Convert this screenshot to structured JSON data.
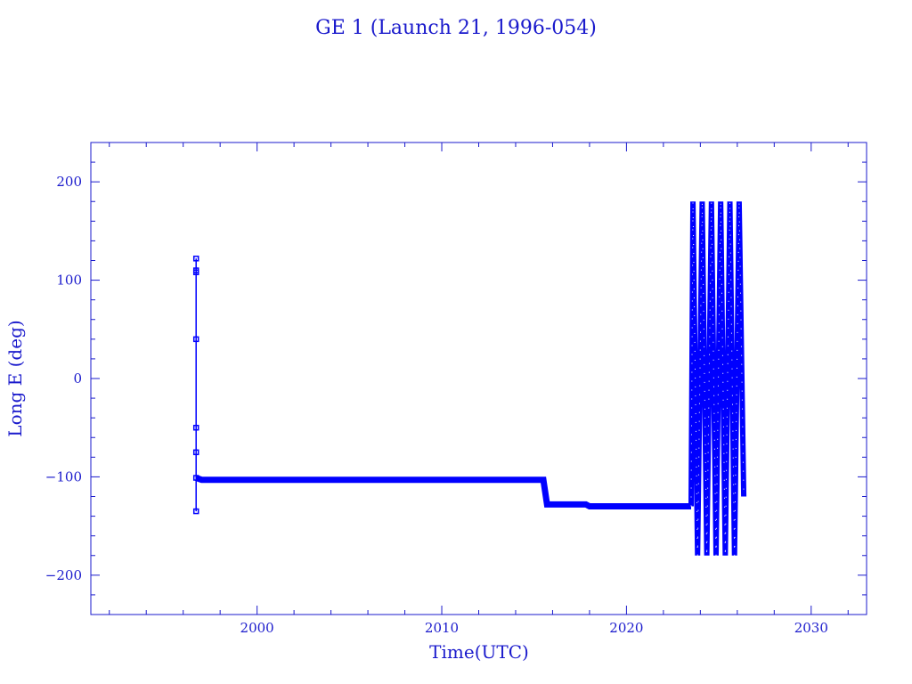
{
  "colors": {
    "axis": "#1a1acc",
    "series": "#0000ff",
    "background": "#ffffff"
  },
  "chart_data": {
    "type": "line",
    "title": "GE 1 (Launch 21, 1996-054)",
    "xlabel": "Time(UTC)",
    "ylabel": "Long E (deg)",
    "xlim": [
      1991,
      2033
    ],
    "ylim": [
      -240,
      240
    ],
    "x_ticks": [
      2000,
      2010,
      2020,
      2030
    ],
    "x_tick_labels": [
      "2000",
      "2010",
      "2020",
      "2030"
    ],
    "y_ticks": [
      -200,
      -100,
      0,
      100,
      200
    ],
    "y_tick_labels": [
      "−200",
      "−100",
      "0",
      "100",
      "200"
    ],
    "x_minor_step": 2,
    "y_minor_step": 20,
    "grid": false,
    "series": [
      {
        "x": [
          1996.7,
          1996.7,
          1996.7,
          1996.7,
          1996.7,
          1996.7,
          1996.7,
          1996.7,
          1997.0,
          2005.0,
          2010.0,
          2015.5,
          2015.7,
          2016.5,
          2017.8,
          2018.0,
          2019.0,
          2021.0,
          2023.4,
          2023.5
        ],
        "y": [
          -135,
          -101,
          -75,
          -50,
          40,
          108,
          110,
          122,
          -103,
          -103,
          -103,
          -103,
          -128,
          -128,
          -128,
          -130,
          -130,
          -130,
          -130,
          -130
        ]
      },
      {
        "x": [
          2023.5,
          2023.6,
          2023.85,
          2024.1,
          2024.35,
          2024.6,
          2024.85,
          2025.1,
          2025.35,
          2025.6,
          2025.85,
          2026.1,
          2026.35
        ],
        "y": [
          -130,
          180,
          -180,
          180,
          -180,
          180,
          -180,
          180,
          -180,
          180,
          -180,
          180,
          -120
        ]
      }
    ]
  }
}
